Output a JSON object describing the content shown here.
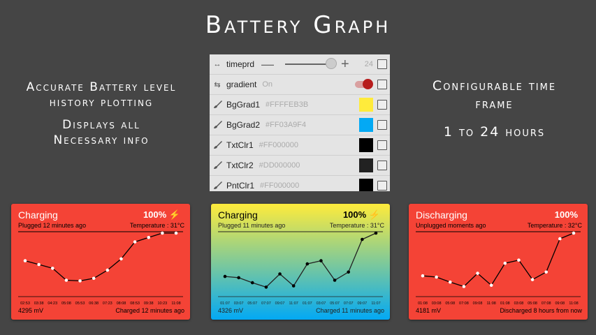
{
  "title": "Battery Graph",
  "left_blurb": {
    "line1": "Accurate Battery level",
    "line2": "history plotting",
    "line3": "Displays all",
    "line4": "Necessary info"
  },
  "right_blurb": {
    "line1": "Configurable time",
    "line2": "frame",
    "line3": "1 to 24 hours"
  },
  "settings": [
    {
      "icon": "arrows-horizontal-icon",
      "name": "timeprd",
      "value": "24",
      "control": "slider",
      "slider_level": 1.0
    },
    {
      "icon": "swap-icon",
      "name": "gradient",
      "value": "On",
      "control": "toggle"
    },
    {
      "icon": "brush-icon",
      "name": "BgGrad1",
      "value": "#FFFFEB3B",
      "swatch": "#FFEB3B"
    },
    {
      "icon": "brush-icon",
      "name": "BgGrad2",
      "value": "#FF03A9F4",
      "swatch": "#03A9F4"
    },
    {
      "icon": "brush-icon",
      "name": "TxtClr1",
      "value": "#FF000000",
      "swatch": "#000000"
    },
    {
      "icon": "brush-icon",
      "name": "TxtClr2",
      "value": "#DD000000",
      "swatch": "#222222"
    },
    {
      "icon": "brush-icon",
      "name": "PntClr1",
      "value": "#FF000000",
      "swatch": "#000000"
    }
  ],
  "cards": [
    {
      "status": "Charging",
      "percent": "100%",
      "charging_icon": true,
      "sub": "Plugged 12 minutes ago",
      "temperature": "Temperature : 31°C",
      "mv": "4295 mV",
      "footer": "Charged 12 minutes ago",
      "bg": "#F44336",
      "text": "#ffffff",
      "text2": "#000000",
      "point": "#ffffff",
      "chart_data": {
        "type": "line",
        "categories": [
          "02:53",
          "03:38",
          "04:23",
          "05:08",
          "05:53",
          "06:38",
          "07:23",
          "08:08",
          "08:53",
          "09:38",
          "10:23",
          "11:08"
        ],
        "values": [
          56,
          50,
          44,
          25,
          24,
          28,
          41,
          59,
          86,
          93,
          100,
          100
        ],
        "ylim": [
          0,
          100
        ]
      }
    },
    {
      "status": "Charging",
      "percent": "100%",
      "charging_icon": true,
      "sub": "Plugged 11 minutes ago",
      "temperature": "Temperature : 31°C",
      "mv": "4326 mV",
      "footer": "Charged 11 minutes ago",
      "bg": "linear-gradient(#FFEB3B,#03A9F4)",
      "text": "#000000",
      "text2": "#222222",
      "point": "#000000",
      "chart_data": {
        "type": "line",
        "categories": [
          "01:07",
          "03:07",
          "05:07",
          "07:07",
          "09:07",
          "11:07",
          "01:07",
          "03:07",
          "05:07",
          "07:07",
          "09:07",
          "11:07"
        ],
        "values": [
          31,
          29,
          21,
          14,
          35,
          16,
          51,
          56,
          25,
          38,
          90,
          100
        ],
        "ylim": [
          0,
          100
        ]
      }
    },
    {
      "status": "Discharging",
      "percent": "100%",
      "charging_icon": false,
      "sub": "Unplugged moments ago",
      "temperature": "Temperature : 32°C",
      "mv": "4181 mV",
      "footer": "Discharged 8 hours from now",
      "bg": "#F44336",
      "text": "#ffffff",
      "text2": "#000000",
      "point": "#ffffff",
      "chart_data": {
        "type": "line",
        "categories": [
          "01:08",
          "03:08",
          "05:08",
          "07:08",
          "09:08",
          "11:08",
          "01:08",
          "03:08",
          "05:08",
          "07:08",
          "09:08",
          "11:08"
        ],
        "values": [
          32,
          30,
          22,
          15,
          36,
          17,
          52,
          57,
          26,
          38,
          91,
          100
        ],
        "ylim": [
          0,
          100
        ]
      }
    }
  ]
}
